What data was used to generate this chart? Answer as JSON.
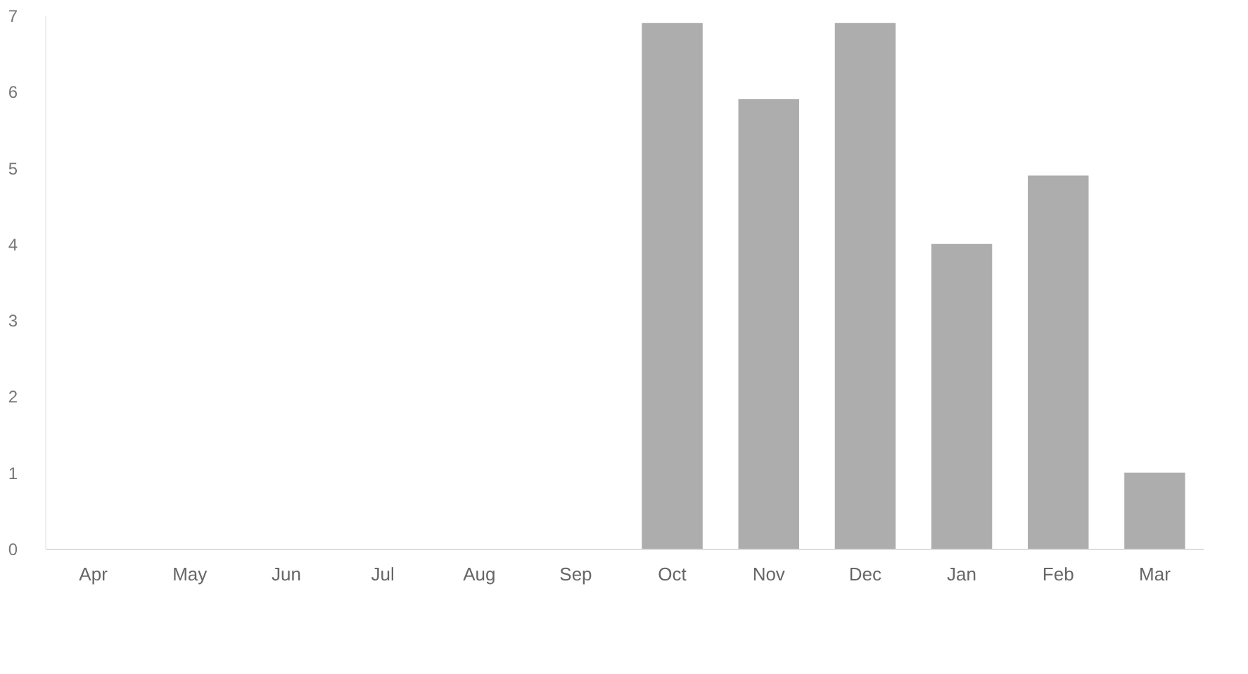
{
  "chart_data": {
    "type": "bar",
    "categories": [
      "Apr",
      "May",
      "Jun",
      "Jul",
      "Aug",
      "Sep",
      "Oct",
      "Nov",
      "Dec",
      "Jan",
      "Feb",
      "Mar"
    ],
    "values": [
      null,
      null,
      null,
      null,
      null,
      null,
      6.9,
      5.9,
      6.9,
      4.0,
      4.9,
      1.0
    ],
    "color": "#adadad",
    "ylim": [
      0,
      7
    ],
    "yticks": [
      0,
      1,
      2,
      3,
      4,
      5,
      6,
      7
    ],
    "grid": false
  }
}
